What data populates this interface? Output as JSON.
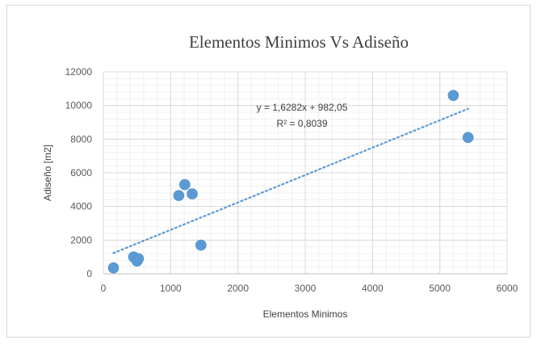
{
  "chart_data": {
    "type": "scatter",
    "title": "Elementos Minimos Vs Adiseño",
    "xlabel": "Elementos Minimos",
    "ylabel": "Adiseño [m2]",
    "xlim": [
      0,
      6000
    ],
    "ylim": [
      0,
      12000
    ],
    "x_ticks": [
      "0",
      "1000",
      "2000",
      "3000",
      "4000",
      "5000",
      "6000"
    ],
    "y_ticks": [
      "0",
      "2000",
      "4000",
      "6000",
      "8000",
      "10000",
      "12000"
    ],
    "grid": true,
    "point_color": "#5b9bd5",
    "trendline_color": "#5b9bd5",
    "points": [
      {
        "x": 150,
        "y": 350
      },
      {
        "x": 450,
        "y": 1000
      },
      {
        "x": 500,
        "y": 750
      },
      {
        "x": 520,
        "y": 900
      },
      {
        "x": 1120,
        "y": 4650
      },
      {
        "x": 1210,
        "y": 5300
      },
      {
        "x": 1320,
        "y": 4750
      },
      {
        "x": 1450,
        "y": 1700
      },
      {
        "x": 5200,
        "y": 10600
      },
      {
        "x": 5420,
        "y": 8100
      }
    ],
    "trendline": {
      "type": "linear",
      "slope": 1.6282,
      "intercept": 982.05,
      "x_range": [
        150,
        5420
      ],
      "equation_label": "y = 1,6282x + 982,05",
      "r2_label": "R² = 0,8039"
    }
  }
}
